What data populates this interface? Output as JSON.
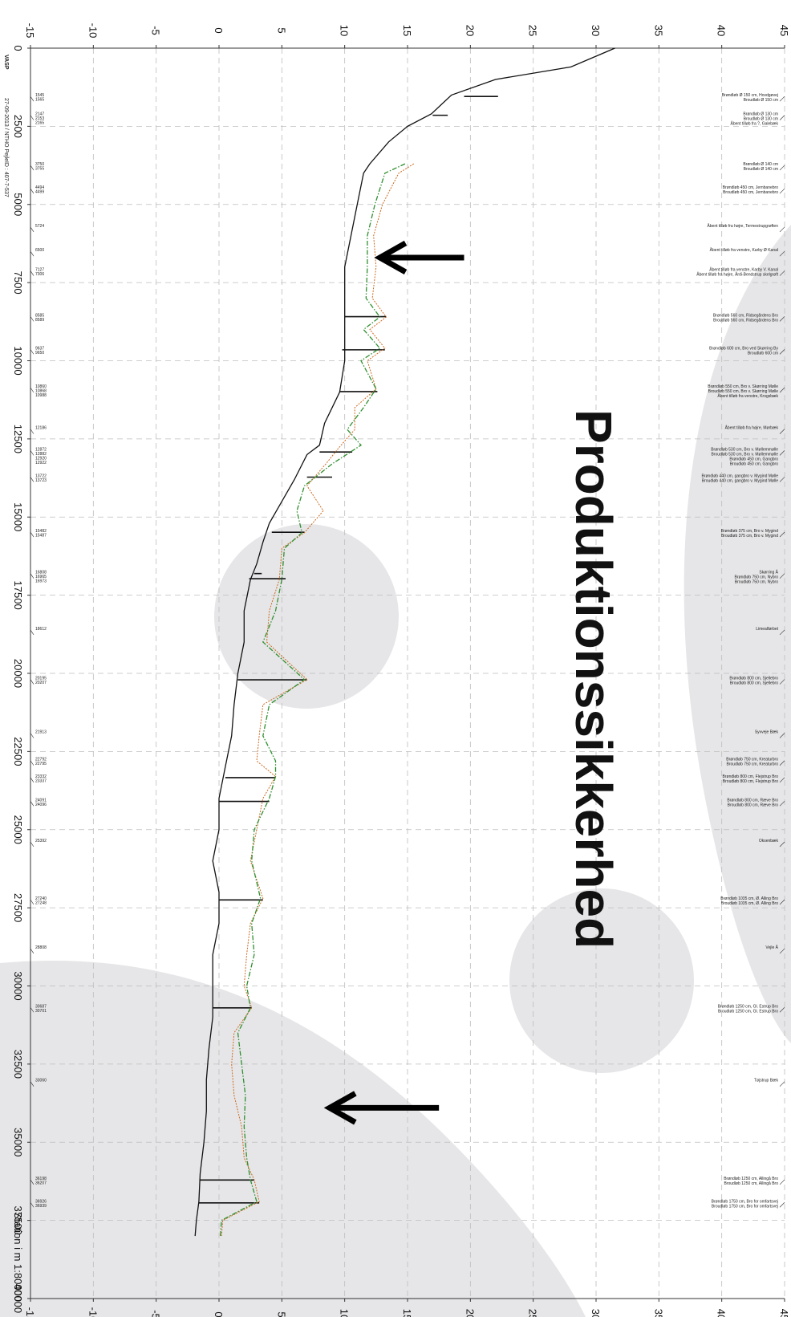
{
  "meta": {
    "logo": "VASP",
    "info": "27-09-2013 / NTHO   PejleID : 407-7-537",
    "x_title": "Station i m  1:80000"
  },
  "watermark": {
    "text": "Produktionssikkerhed"
  },
  "colors": {
    "ground": "#111111",
    "orange": "#cc6a1f",
    "green": "#2f8f2f",
    "grid": "#bdbdbd",
    "bg_shape": "#e6e6e8"
  },
  "chart_data": {
    "type": "line",
    "orientation": "rotated-90",
    "xlabel": "Station i m  1:80000",
    "xlim": [
      0,
      40000
    ],
    "ylim": [
      -15,
      45
    ],
    "x_ticks": [
      0,
      2500,
      5000,
      7500,
      10000,
      12500,
      15000,
      17500,
      20000,
      22500,
      25000,
      27500,
      30000,
      32500,
      35000,
      37500,
      40000
    ],
    "y_ticks": [
      -15,
      -10,
      -5,
      0,
      5,
      10,
      15,
      20,
      25,
      30,
      35,
      40,
      45
    ],
    "grid": true,
    "series": [
      {
        "key": "bottom",
        "points": [
          [
            0,
            31.5
          ],
          [
            600,
            28
          ],
          [
            1000,
            22
          ],
          [
            1500,
            18.5
          ],
          [
            2100,
            16.9
          ],
          [
            2500,
            15
          ],
          [
            3000,
            13.5
          ],
          [
            3700,
            12
          ],
          [
            4000,
            11.5
          ],
          [
            5000,
            11
          ],
          [
            6000,
            10.5
          ],
          [
            7000,
            10
          ],
          [
            8000,
            10
          ],
          [
            9000,
            10
          ],
          [
            10000,
            10
          ],
          [
            11000,
            9.6
          ],
          [
            12000,
            8.4
          ],
          [
            12700,
            8
          ],
          [
            13000,
            7
          ],
          [
            13800,
            6
          ],
          [
            14500,
            5
          ],
          [
            15200,
            4
          ],
          [
            15800,
            3.5
          ],
          [
            16500,
            3
          ],
          [
            17000,
            2.5
          ],
          [
            18000,
            2
          ],
          [
            19000,
            2
          ],
          [
            20000,
            1.5
          ],
          [
            21000,
            1.2
          ],
          [
            22000,
            1
          ],
          [
            23000,
            0.5
          ],
          [
            24000,
            0
          ],
          [
            25000,
            0
          ],
          [
            26000,
            -0.5
          ],
          [
            27000,
            0
          ],
          [
            28000,
            0
          ],
          [
            29000,
            -0.5
          ],
          [
            30000,
            -0.5
          ],
          [
            31000,
            -0.5
          ],
          [
            32000,
            -0.8
          ],
          [
            33000,
            -1
          ],
          [
            34000,
            -1
          ],
          [
            35000,
            -1.2
          ],
          [
            36000,
            -1.5
          ],
          [
            36900,
            -1.6
          ],
          [
            37500,
            -1.8
          ],
          [
            38000,
            -1.9
          ]
        ]
      },
      {
        "key": "level_orange",
        "points": [
          [
            3700,
            15.5
          ],
          [
            4000,
            14.3
          ],
          [
            5000,
            13
          ],
          [
            6000,
            12.3
          ],
          [
            7000,
            12.5
          ],
          [
            8000,
            12.2
          ],
          [
            8600,
            13.3
          ],
          [
            9000,
            12
          ],
          [
            9600,
            13.2
          ],
          [
            10000,
            11.8
          ],
          [
            10900,
            12.5
          ],
          [
            11500,
            10.8
          ],
          [
            12200,
            10.8
          ],
          [
            12800,
            9.5
          ],
          [
            13300,
            8.5
          ],
          [
            14000,
            7
          ],
          [
            14800,
            8.3
          ],
          [
            15500,
            6.8
          ],
          [
            16000,
            5
          ],
          [
            17000,
            4.8
          ],
          [
            18000,
            4
          ],
          [
            19000,
            3.8
          ],
          [
            20200,
            7
          ],
          [
            21000,
            3.5
          ],
          [
            22000,
            3.2
          ],
          [
            22800,
            3
          ],
          [
            23300,
            4.5
          ],
          [
            24000,
            3.5
          ],
          [
            25000,
            3
          ],
          [
            26000,
            2.5
          ],
          [
            27200,
            3.5
          ],
          [
            28000,
            2.5
          ],
          [
            29000,
            2.2
          ],
          [
            30000,
            2
          ],
          [
            30700,
            2.6
          ],
          [
            31500,
            1.2
          ],
          [
            32500,
            1
          ],
          [
            33500,
            1.2
          ],
          [
            34500,
            1.8
          ],
          [
            35500,
            2
          ],
          [
            36200,
            2.8
          ],
          [
            36900,
            3.2
          ],
          [
            37500,
            0.3
          ],
          [
            38000,
            0.2
          ]
        ]
      },
      {
        "key": "level_green",
        "points": [
          [
            3700,
            14.8
          ],
          [
            4000,
            13.2
          ],
          [
            5000,
            12.4
          ],
          [
            6000,
            11.8
          ],
          [
            7000,
            11.8
          ],
          [
            8000,
            11.7
          ],
          [
            8600,
            12.8
          ],
          [
            9000,
            11.5
          ],
          [
            9600,
            12.8
          ],
          [
            10000,
            11.3
          ],
          [
            10900,
            12.5
          ],
          [
            11500,
            11.5
          ],
          [
            12200,
            10.2
          ],
          [
            12700,
            11.3
          ],
          [
            13300,
            9
          ],
          [
            14000,
            6.8
          ],
          [
            14800,
            6.2
          ],
          [
            15500,
            6.6
          ],
          [
            16000,
            5.2
          ],
          [
            17000,
            5
          ],
          [
            18000,
            4.5
          ],
          [
            19000,
            3.5
          ],
          [
            20200,
            6.8
          ],
          [
            21000,
            4
          ],
          [
            22000,
            3.5
          ],
          [
            22800,
            4.5
          ],
          [
            23300,
            4.5
          ],
          [
            24000,
            4
          ],
          [
            25000,
            2.8
          ],
          [
            26000,
            2.6
          ],
          [
            27200,
            3.3
          ],
          [
            28000,
            2.6
          ],
          [
            29000,
            2.8
          ],
          [
            30000,
            2.2
          ],
          [
            30700,
            2.5
          ],
          [
            31500,
            1.5
          ],
          [
            32500,
            1.8
          ],
          [
            33500,
            2.1
          ],
          [
            34500,
            2
          ],
          [
            35500,
            2.2
          ],
          [
            36200,
            2.5
          ],
          [
            36900,
            3
          ],
          [
            37500,
            0.2
          ],
          [
            38000,
            0.1
          ]
        ]
      }
    ],
    "cross_ticks": [
      {
        "x": 1545,
        "y": [
          19.5,
          22.2
        ]
      },
      {
        "x": 2147,
        "y": [
          17.0,
          18.2
        ]
      },
      {
        "x": 8589,
        "y": [
          10.0,
          13.3
        ]
      },
      {
        "x": 9650,
        "y": [
          9.8,
          13.2
        ]
      },
      {
        "x": 10988,
        "y": [
          9.6,
          12.6
        ]
      },
      {
        "x": 12920,
        "y": [
          8.0,
          10.6
        ]
      },
      {
        "x": 13723,
        "y": [
          7.0,
          9.0
        ]
      },
      {
        "x": 15487,
        "y": [
          4.2,
          6.8
        ]
      },
      {
        "x": 16808,
        "y": [
          2.8,
          3.4
        ]
      },
      {
        "x": 16973,
        "y": [
          2.4,
          5.3
        ]
      },
      {
        "x": 20207,
        "y": [
          1.5,
          7.0
        ]
      },
      {
        "x": 23337,
        "y": [
          0.5,
          4.5
        ]
      },
      {
        "x": 24096,
        "y": [
          0.0,
          4.0
        ]
      },
      {
        "x": 27248,
        "y": [
          0.0,
          3.5
        ]
      },
      {
        "x": 30701,
        "y": [
          -0.5,
          2.6
        ]
      },
      {
        "x": 36207,
        "y": [
          -1.5,
          2.8
        ]
      },
      {
        "x": 36939,
        "y": [
          -1.6,
          3.2
        ]
      }
    ],
    "stations": [
      {
        "x": 1545,
        "labels": [
          "1545",
          "1565"
        ]
      },
      {
        "x": 2147,
        "labels": [
          "2147",
          "2153",
          "2165"
        ]
      },
      {
        "x": 3750,
        "labels": [
          "3750",
          "3755"
        ]
      },
      {
        "x": 4494,
        "labels": [
          "4494",
          "4499"
        ]
      },
      {
        "x": 5724,
        "labels": [
          "5724"
        ]
      },
      {
        "x": 6500,
        "labels": [
          "6500"
        ]
      },
      {
        "x": 7127,
        "labels": [
          "7127",
          "7306"
        ]
      },
      {
        "x": 8585,
        "labels": [
          "8585",
          "8589"
        ]
      },
      {
        "x": 9637,
        "labels": [
          "9637",
          "9650"
        ]
      },
      {
        "x": 10860,
        "labels": [
          "10860",
          "10868",
          "10988"
        ]
      },
      {
        "x": 12186,
        "labels": [
          "12186"
        ]
      },
      {
        "x": 12872,
        "labels": [
          "12872",
          "12882",
          "12920",
          "12922"
        ]
      },
      {
        "x": 13722,
        "labels": [
          "13722",
          "13723"
        ]
      },
      {
        "x": 15482,
        "labels": [
          "15482",
          "15487"
        ]
      },
      {
        "x": 16808,
        "labels": [
          "16808",
          "16965",
          "16973"
        ]
      },
      {
        "x": 18612,
        "labels": [
          "18612"
        ]
      },
      {
        "x": 20195,
        "labels": [
          "20195",
          "20207"
        ]
      },
      {
        "x": 21913,
        "labels": [
          "21913"
        ]
      },
      {
        "x": 22792,
        "labels": [
          "22792",
          "22795"
        ]
      },
      {
        "x": 23332,
        "labels": [
          "23332",
          "23337"
        ]
      },
      {
        "x": 24091,
        "labels": [
          "24091",
          "24096"
        ]
      },
      {
        "x": 25392,
        "labels": [
          "25392"
        ]
      },
      {
        "x": 27240,
        "labels": [
          "27240",
          "27248"
        ]
      },
      {
        "x": 28808,
        "labels": [
          "28808"
        ]
      },
      {
        "x": 30687,
        "labels": [
          "30687",
          "30701"
        ]
      },
      {
        "x": 33060,
        "labels": [
          "33060"
        ]
      },
      {
        "x": 36198,
        "labels": [
          "36198",
          "36207"
        ]
      },
      {
        "x": 36926,
        "labels": [
          "36926",
          "36939"
        ]
      }
    ],
    "structures": [
      {
        "x": 1545,
        "lines": [
          "Brøndløb Ø 150 cm, Hovdgøvej",
          "Broudløb Ø 150 cm"
        ]
      },
      {
        "x": 2147,
        "lines": [
          "Brøndløb Ø 130 cm",
          "Broudløb Ø 130 cm",
          "Åbent tilløb fra ?, Galebæk"
        ]
      },
      {
        "x": 3750,
        "lines": [
          "Brøndløb Ø 140 cm",
          "Broudløb Ø 140 cm"
        ]
      },
      {
        "x": 4494,
        "lines": [
          "Brøndløb 450 cm, Jernbanebro",
          "Broudløb 450 cm, Jernbanebro"
        ]
      },
      {
        "x": 5724,
        "lines": [
          "Åbent tilløb fra højre, Termestrupgrøften"
        ]
      },
      {
        "x": 6500,
        "lines": [
          "Åbent tilløb fra venstre, Karby Ø Kanal"
        ]
      },
      {
        "x": 7127,
        "lines": [
          "Åbent tilløb fra venstre, Karby V. Kanal",
          "Åbent tilløb fra højre, Årdi-Bendstrup skelgrøft"
        ]
      },
      {
        "x": 8585,
        "lines": [
          "Brøndløb 560 cm, Ridsegårdens Bro",
          "Broudløb 560 cm, Ridsegårdens Bro"
        ]
      },
      {
        "x": 9637,
        "lines": [
          "Brøndløb 600 cm, Bro ved Skørring By",
          "Broudløb 600 cm"
        ]
      },
      {
        "x": 10860,
        "lines": [
          "Brøndløb 550 cm, Bro v. Skørring Mølle",
          "Broudløb 550 cm, Bro v. Skørring Mølle",
          "Åbent tilløb fra venstre, Krogsbæk"
        ]
      },
      {
        "x": 12186,
        "lines": [
          "Åbent tilløb fra højre, Mørbæk"
        ]
      },
      {
        "x": 12872,
        "lines": [
          "Brøndløb 530 cm, Bro v. Møllemmølle",
          "Broudløb 530 cm, Bro v. Møllemmølle",
          "Brøndløb 450 cm, Gangbro",
          "Broudløb 450 cm, Gangbro"
        ]
      },
      {
        "x": 13722,
        "lines": [
          "Brøndløb 440 cm, gangbro v. Mygind Mølle",
          "Broudløb 440 cm, gangbro v. Mygind Mølle"
        ]
      },
      {
        "x": 15482,
        "lines": [
          "Brøndløb 375 cm, Bro v. Mygind",
          "Broudløb 375 cm, Bro v. Mygind"
        ]
      },
      {
        "x": 16808,
        "lines": [
          "Skørring Å",
          "Brøndløb 750 cm, Nybro",
          "Broudløb 750 cm, Nybro"
        ]
      },
      {
        "x": 18612,
        "lines": [
          "Limealførbet"
        ]
      },
      {
        "x": 20195,
        "lines": [
          "Brøndløb 800 cm, Sjellebro",
          "Broudløb 800 cm, Sjellebro"
        ]
      },
      {
        "x": 21913,
        "lines": [
          "Syvveje Bæk"
        ]
      },
      {
        "x": 22792,
        "lines": [
          "Brøndløb 750 cm, Kreaturbro",
          "Broudløb 750 cm, Kreaturbro"
        ]
      },
      {
        "x": 23332,
        "lines": [
          "Brøndløb 800 cm, Flejstrup Bro",
          "Broudløb 800 cm, Flejstrup Bro"
        ]
      },
      {
        "x": 24091,
        "lines": [
          "Brøndløb 800 cm, Ræve Bro",
          "Broudløb 800 cm, Ræve Bro"
        ]
      },
      {
        "x": 25392,
        "lines": [
          "Oksenbæk"
        ]
      },
      {
        "x": 27240,
        "lines": [
          "Brøndløb 1035 cm, Ø. Alling Bro",
          "Broudløb 1035 cm, Ø. Alling Bro"
        ]
      },
      {
        "x": 28808,
        "lines": [
          "Vejle Å"
        ]
      },
      {
        "x": 30687,
        "lines": [
          "Brøndløb 1250 cm, Gl. Estrup Bro",
          "Broudløb 1250 cm, Gl. Estrup Bro"
        ]
      },
      {
        "x": 33060,
        "lines": [
          "Tøjstrup Bæk"
        ]
      },
      {
        "x": 36198,
        "lines": [
          "Brøndløb 1250 cm, Allingå Bro",
          "Broudløb 1250 cm, Allingå Bro"
        ]
      },
      {
        "x": 36926,
        "lines": [
          "Brøndløb 1750 cm, Bro for omfartsvej",
          "Broudløb 1750 cm, Bro for omfartsvej"
        ]
      }
    ],
    "arrows": [
      {
        "station": 6700,
        "y_from": 19.5,
        "y_to": 12.8
      },
      {
        "station": 33900,
        "y_from": 17.5,
        "y_to": 8.8
      }
    ]
  }
}
